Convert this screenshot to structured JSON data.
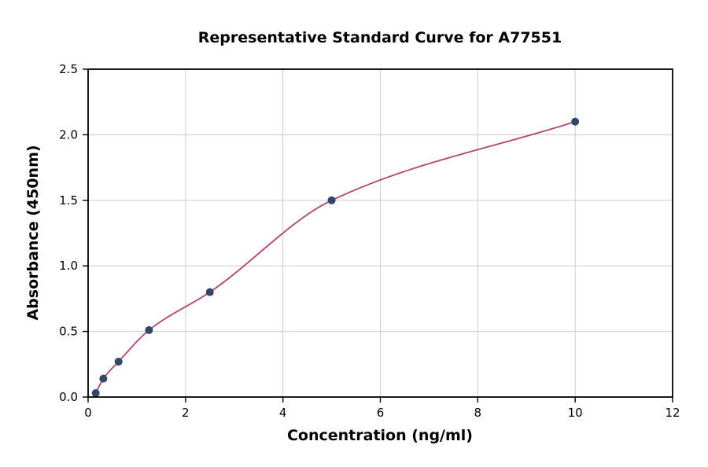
{
  "chart_data": {
    "type": "scatter",
    "title": "Representative Standard Curve for A77551",
    "xlabel": "Concentration (ng/ml)",
    "ylabel": "Absorbance (450nm)",
    "xlim": [
      0,
      12
    ],
    "ylim": [
      0,
      2.5
    ],
    "grid": true,
    "legend": "none",
    "x_tick_values": [
      0,
      2,
      4,
      6,
      8,
      10,
      12
    ],
    "x_tick_labels": [
      "0",
      "2",
      "4",
      "6",
      "8",
      "10",
      "12"
    ],
    "y_tick_values": [
      0,
      0.5,
      1.0,
      1.5,
      2.0,
      2.5
    ],
    "y_tick_labels": [
      "0.0",
      "0.5",
      "1.0",
      "1.5",
      "2.0",
      "2.5"
    ],
    "series": [
      {
        "name": "standard-points",
        "type": "scatter",
        "x": [
          0.156,
          0.313,
          0.625,
          1.25,
          2.5,
          5,
          10
        ],
        "y": [
          0.03,
          0.14,
          0.27,
          0.51,
          0.8,
          1.5,
          2.1
        ]
      },
      {
        "name": "fitted-curve",
        "type": "line",
        "x": [
          0.156,
          0.313,
          0.625,
          1.25,
          2.5,
          5,
          10
        ],
        "y": [
          0.03,
          0.14,
          0.27,
          0.51,
          0.8,
          1.5,
          2.1
        ]
      }
    ],
    "colors": {
      "point_color": "#34456b",
      "curve_color": "#b5446b",
      "grid_color": "#cccccc",
      "axis_color": "#000000",
      "background": "#ffffff"
    }
  }
}
